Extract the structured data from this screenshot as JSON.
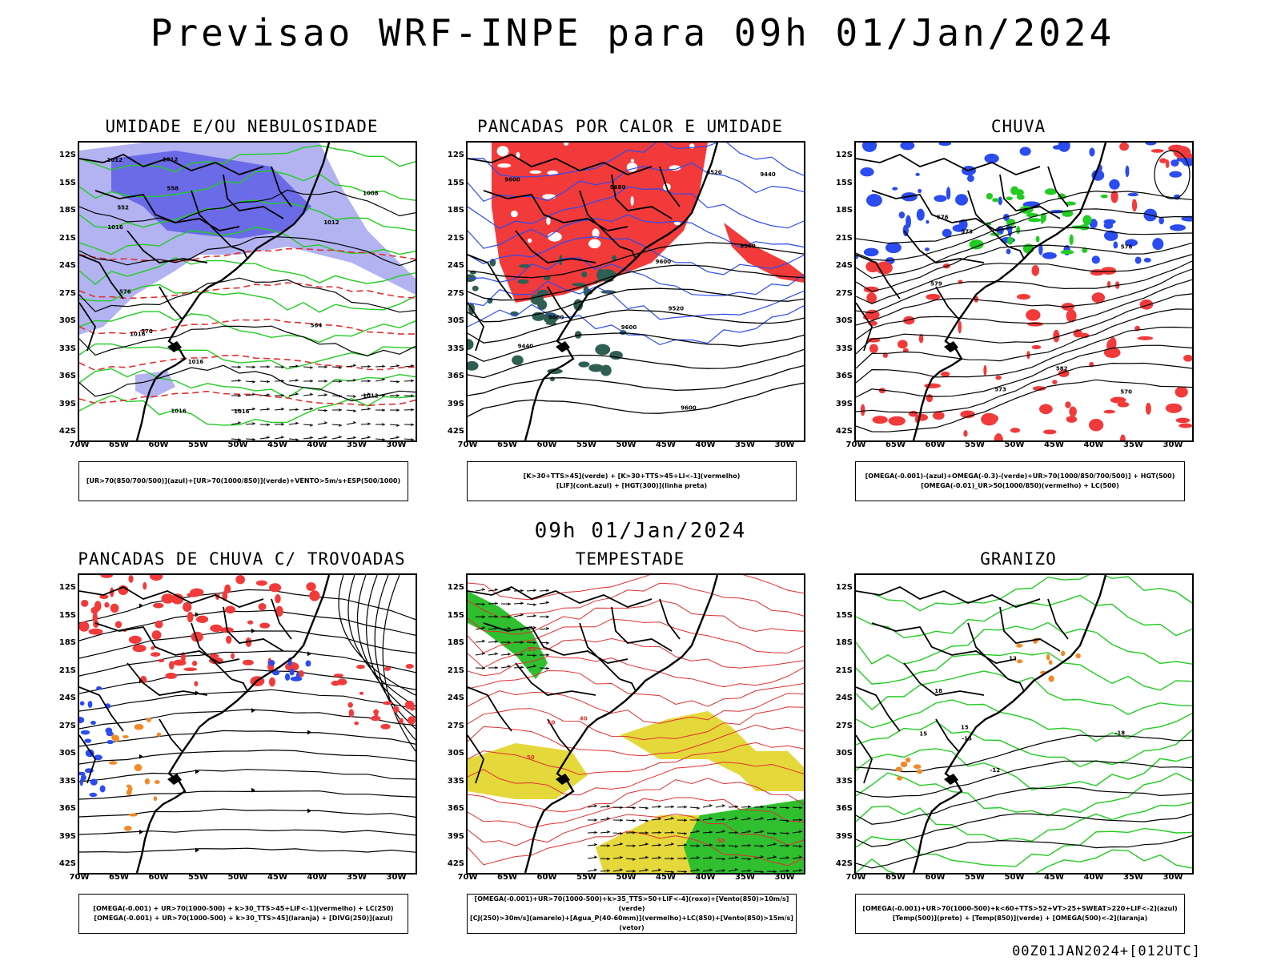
{
  "title": "Previsao WRF-INPE  para 09h 01/Jan/2024",
  "mid_title": "09h 01/Jan/2024",
  "footer": "00Z01JAN2024+[012UTC]",
  "lat_labels": [
    "12S",
    "15S",
    "18S",
    "21S",
    "24S",
    "27S",
    "30S",
    "33S",
    "36S",
    "39S",
    "42S"
  ],
  "lon_labels": [
    "70W",
    "65W",
    "60W",
    "55W",
    "50W",
    "45W",
    "40W",
    "35W",
    "30W"
  ],
  "panels": [
    {
      "title": "UMIDADE E/OU NEBULOSIDADE",
      "legend": [
        "[UR>70(850/700/500)](azul)+[UR>70(1000/850)](verde)+VENTO>5m/s+ESP(500/1000)"
      ],
      "contour_labels": [
        "1012",
        "1016",
        "1012",
        "1016",
        "1016",
        "1012",
        "1016",
        "1016",
        "1012",
        "1008",
        "576",
        "570",
        "564",
        "558",
        "552"
      ]
    },
    {
      "title": "PANCADAS POR CALOR E UMIDADE",
      "legend": [
        "[K>30+TTS>45](verde) + [K>30+TTS>45+LI<-1](vermelho)",
        "[LIF](cont.azul) + [HGT(300)](linha preta)"
      ],
      "contour_labels": [
        "9680",
        "9680",
        "9600",
        "9600",
        "9600",
        "9520",
        "9440",
        "9440",
        "9520",
        "9600",
        "9360"
      ]
    },
    {
      "title": "CHUVA",
      "legend": [
        "[OMEGA(-0.001)-(azul)+OMEGA(-0.3)-(verde)+UR>70(1000/850/700/500)] + HGT(500)",
        "[OMEGA(-0.01)_UR>50(1000/850)(vermelho) + LC(500)"
      ],
      "contour_labels": [
        "582",
        "579",
        "576",
        "573",
        "570",
        "576",
        "573"
      ]
    },
    {
      "title": "PANCADAS DE CHUVA C/ TROVOADAS",
      "legend": [
        "[OMEGA(-0.001) + UR>70(1000-500) + k>30_TTS>45+LIF<-1](vermelho) + LC(250)",
        "[OMEGA(-0.001) + UR>70(1000-500) + k>30_TTS>45](laranja) + [DIVG(250)](azul)"
      ],
      "contour_labels": []
    },
    {
      "title": "TEMPESTADE",
      "legend": [
        "[OMEGA(-0.001)+UR>70(1000-500)+k>35_TTS>50+LIF<-4](roxo)+[Vento(850)>10m/s](verde)",
        "[CJ(250)>30m/s](amarelo)+[Agua_P(40-60mm)](vermelho)+LC(850)+[Vento(850)>15m/s](vetor)"
      ],
      "contour_labels": [
        "40",
        "40",
        "50",
        "50",
        "50"
      ]
    },
    {
      "title": "GRANIZO",
      "legend": [
        "[OMEGA(-0.001)+UR>70(1000-500)+k<60+TTS>52+VT>25+SWEAT>220+LIF<-2](azul)",
        "[Temp(500)](preto) + [Temp(850)](verde) + [OMEGA(500)<-2](laranja)"
      ],
      "contour_labels": [
        "-12",
        "-15",
        "-18",
        "12",
        "15",
        "15",
        "18"
      ]
    }
  ]
}
